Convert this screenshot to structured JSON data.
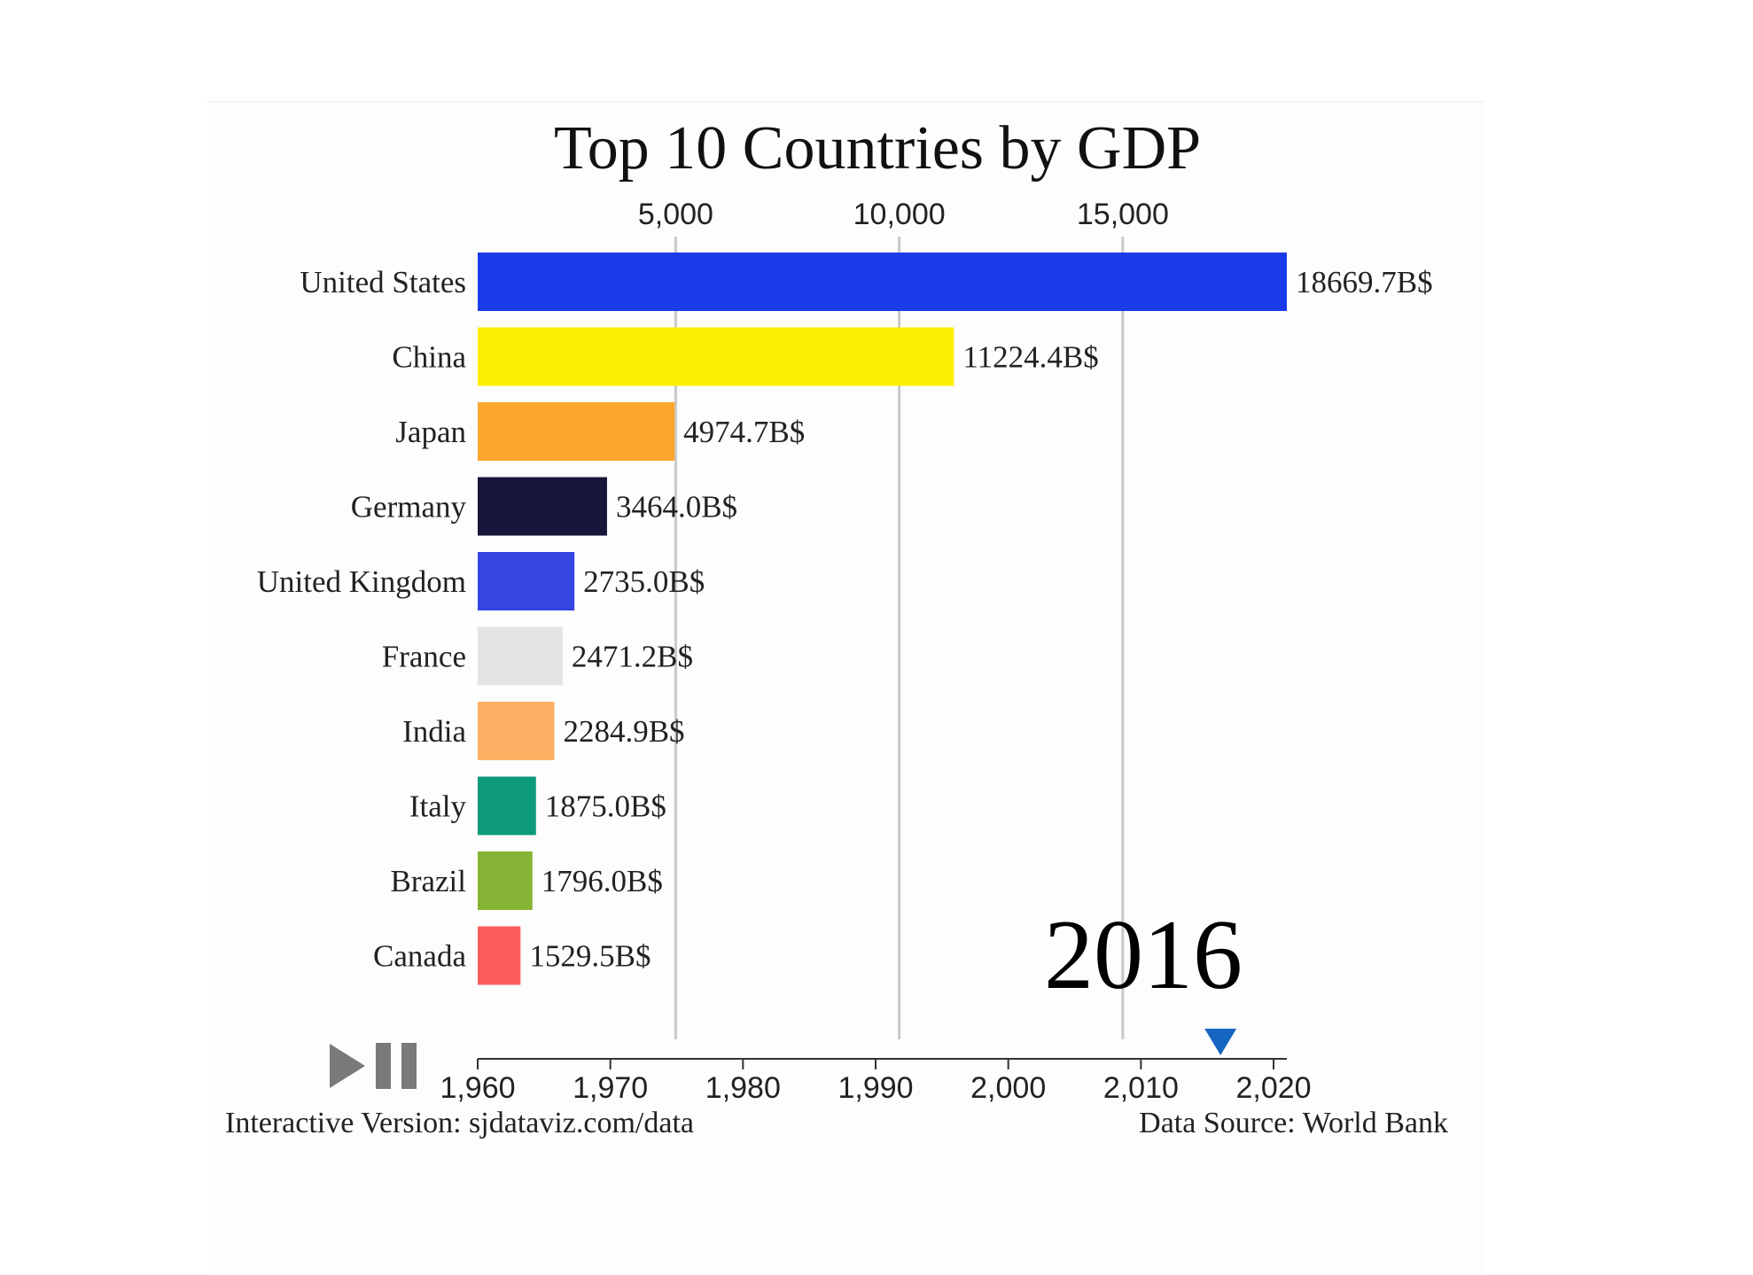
{
  "chart_data": {
    "type": "bar",
    "orientation": "horizontal",
    "title": "Top 10 Countries by GDP",
    "categories": [
      "United States",
      "China",
      "Japan",
      "Germany",
      "United Kingdom",
      "France",
      "India",
      "Italy",
      "Brazil",
      "Canada"
    ],
    "values": [
      18669.7,
      11224.4,
      4974.7,
      3464.0,
      2735.0,
      2471.2,
      2284.9,
      1875.0,
      1796.0,
      1529.5
    ],
    "value_labels": [
      "18669.7B$",
      "11224.4B$",
      "4974.7B$",
      "3464.0B$",
      "2735.0B$",
      "2471.2B$",
      "2284.9B$",
      "1875.0B$",
      "1796.0B$",
      "1529.5B$"
    ],
    "colors": [
      "#1a3be8",
      "#fcee00",
      "#fca62e",
      "#16163a",
      "#3445e2",
      "#e4e4e4",
      "#fcb064",
      "#0e9b7a",
      "#86b333",
      "#fc5c5c"
    ],
    "x_ticks": [
      5000,
      10000,
      15000
    ],
    "x_tick_labels": [
      "5,000",
      "10,000",
      "15,000"
    ],
    "xlim": [
      571,
      18669.7
    ],
    "grid": true,
    "year": "2016",
    "timeline": {
      "ticks": [
        1960,
        1970,
        1980,
        1990,
        2000,
        2010,
        2020
      ],
      "tick_labels": [
        "1,960",
        "1,970",
        "1,980",
        "1,990",
        "2,000",
        "2,010",
        "2,020"
      ],
      "range": [
        1960,
        2021
      ],
      "current": 2016,
      "marker_color": "#1565c0"
    }
  },
  "footer": {
    "left": "Interactive Version: sjdataviz.com/data",
    "right": "Data Source: World Bank"
  },
  "icons": {
    "play": "play-icon",
    "pause": "pause-icon"
  }
}
